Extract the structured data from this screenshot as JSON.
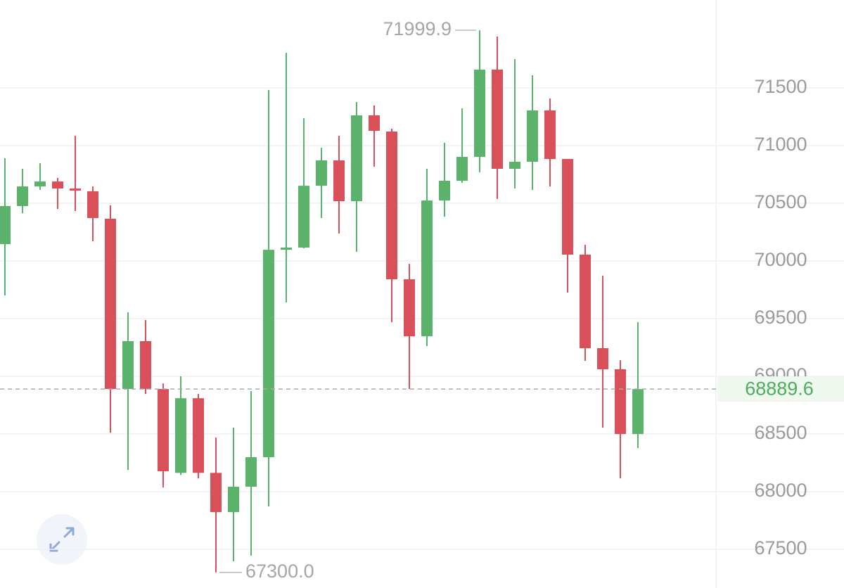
{
  "chart_data": {
    "type": "candlestick",
    "open": [
      70146,
      70476,
      70646,
      70689,
      70628,
      70604,
      70366,
      68890,
      69305,
      68890,
      68163,
      68810,
      68163,
      67823,
      68043,
      68299,
      70097,
      70116,
      70652,
      70872,
      70518,
      71262,
      71122,
      69841,
      69347,
      70524,
      70695,
      70902,
      71659,
      70799,
      70860,
      71305,
      70884,
      70055,
      69244,
      69061,
      68500
    ],
    "high": [
      70890,
      70799,
      70848,
      70720,
      71085,
      70646,
      70482,
      69555,
      69488,
      68938,
      69000,
      68847,
      68469,
      68555,
      68872,
      71482,
      71805,
      71238,
      70982,
      71085,
      71378,
      71348,
      71146,
      69975,
      70799,
      71024,
      71323,
      71999.9,
      71945,
      71750,
      71610,
      71409,
      70884,
      70140,
      69872,
      69140,
      69469
    ],
    "low": [
      69701,
      70414,
      70616,
      70451,
      70433,
      70171,
      68511,
      68188,
      68847,
      68036,
      68145,
      68115,
      67300,
      67397,
      67445,
      67872,
      69640,
      70110,
      70372,
      70238,
      70079,
      70817,
      69469,
      68890,
      69262,
      70384,
      70677,
      70768,
      70537,
      70628,
      70616,
      70646,
      69726,
      69134,
      68555,
      68116,
      68378
    ],
    "close": [
      70476,
      70646,
      70689,
      70628,
      70610,
      70372,
      68890,
      69305,
      68890,
      68177,
      68810,
      68163,
      67823,
      68043,
      68299,
      70097,
      70116,
      70652,
      70872,
      70518,
      71262,
      71128,
      69841,
      69347,
      70524,
      70695,
      70902,
      71659,
      70799,
      70860,
      71305,
      70884,
      70055,
      69244,
      69061,
      68500,
      68889.6
    ],
    "up_color": "#5bb26a",
    "down_color": "#d9505a",
    "ylim": [
      67165,
      72262
    ],
    "yticks": [
      67500,
      68000,
      68500,
      69000,
      69500,
      70000,
      70500,
      71000,
      71500
    ],
    "grid": true,
    "max_label": 71999.9,
    "min_label": {
      "value": 67300,
      "label": "67300.0"
    },
    "last_price": 68889.6
  }
}
